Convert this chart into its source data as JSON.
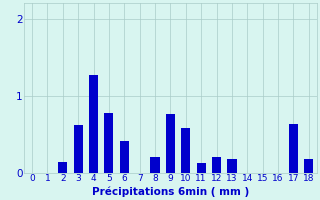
{
  "xlabel": "Précipitations 6min ( mm )",
  "bar_color": "#0000cc",
  "background_color": "#d8f5f0",
  "grid_color": "#aaccc8",
  "tick_color": "#0000cc",
  "xlabel_color": "#0000cc",
  "ylim": [
    0,
    2.2
  ],
  "xlim": [
    -0.5,
    18.5
  ],
  "yticks": [
    0,
    1,
    2
  ],
  "xticks": [
    0,
    1,
    2,
    3,
    4,
    5,
    6,
    7,
    8,
    9,
    10,
    11,
    12,
    13,
    14,
    15,
    16,
    17,
    18
  ],
  "bar_width": 0.6,
  "x_positions": [
    0,
    1,
    2,
    3,
    4,
    5,
    6,
    7,
    8,
    9,
    10,
    11,
    12,
    13,
    14,
    15,
    16,
    17,
    18
  ],
  "heights": [
    0,
    0,
    0.14,
    0.62,
    1.27,
    0.78,
    0.42,
    0,
    0.2,
    0.76,
    0.58,
    0.13,
    0.2,
    0.18,
    0,
    0,
    0,
    0.63,
    0.18
  ]
}
